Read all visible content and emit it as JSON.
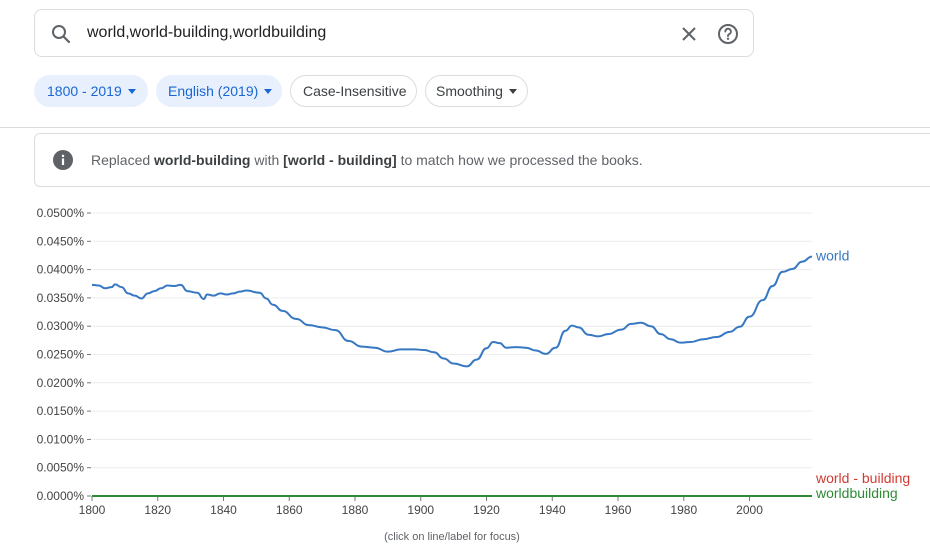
{
  "search": {
    "value": "world,world-building,worldbuilding"
  },
  "chips": [
    {
      "label": "1800 - 2019",
      "style": "filled",
      "dropdown": true
    },
    {
      "label": "English (2019)",
      "style": "filled",
      "dropdown": true
    },
    {
      "label": "Case-Insensitive",
      "style": "outline",
      "dropdown": false
    },
    {
      "label": "Smoothing",
      "style": "outline",
      "dropdown": true
    }
  ],
  "notice": {
    "icon": "info-icon",
    "prefix": "Replaced ",
    "original": "world-building",
    "middle": " with ",
    "replacement": "[world - building]",
    "suffix": " to match how we processed the books."
  },
  "footnote": "(click on line/label for focus)",
  "colors": {
    "world": "#3778c2",
    "world_building": "#d23b33",
    "worldbuilding": "#2e8a35",
    "chip_bg": "#e8f0fe",
    "chip_text": "#1967d2"
  },
  "chart_data": {
    "type": "line",
    "x_range": [
      1800,
      2019
    ],
    "ylim": [
      0,
      0.0005
    ],
    "xticks": [
      "1800",
      "1820",
      "1840",
      "1860",
      "1880",
      "1900",
      "1920",
      "1940",
      "1960",
      "1980",
      "2000"
    ],
    "yticks": [
      "0.0000%",
      "0.0050%",
      "0.0100%",
      "0.0150%",
      "0.0200%",
      "0.0250%",
      "0.0300%",
      "0.0350%",
      "0.0400%",
      "0.0450%",
      "0.0500%"
    ],
    "series": [
      {
        "name": "world",
        "color": "#3778c2",
        "points": [
          [
            1800,
            0.000373
          ],
          [
            1802,
            0.000372
          ],
          [
            1804,
            0.000367
          ],
          [
            1806,
            0.000369
          ],
          [
            1807,
            0.000374
          ],
          [
            1809,
            0.000369
          ],
          [
            1811,
            0.000358
          ],
          [
            1813,
            0.000354
          ],
          [
            1815,
            0.000349
          ],
          [
            1817,
            0.000358
          ],
          [
            1819,
            0.000362
          ],
          [
            1821,
            0.000367
          ],
          [
            1823,
            0.000372
          ],
          [
            1825,
            0.000371
          ],
          [
            1827,
            0.000373
          ],
          [
            1829,
            0.000362
          ],
          [
            1832,
            0.000359
          ],
          [
            1834,
            0.000348
          ],
          [
            1835,
            0.000356
          ],
          [
            1837,
            0.000354
          ],
          [
            1839,
            0.000358
          ],
          [
            1841,
            0.000356
          ],
          [
            1843,
            0.000358
          ],
          [
            1845,
            0.000361
          ],
          [
            1847,
            0.000363
          ],
          [
            1851,
            0.000359
          ],
          [
            1853,
            0.000349
          ],
          [
            1855,
            0.000338
          ],
          [
            1858,
            0.000327
          ],
          [
            1862,
            0.000313
          ],
          [
            1866,
            0.000302
          ],
          [
            1870,
            0.000298
          ],
          [
            1874,
            0.000293
          ],
          [
            1878,
            0.000274
          ],
          [
            1882,
            0.000264
          ],
          [
            1886,
            0.000262
          ],
          [
            1890,
            0.000255
          ],
          [
            1894,
            0.000259
          ],
          [
            1898,
            0.000259
          ],
          [
            1901,
            0.000258
          ],
          [
            1904,
            0.000254
          ],
          [
            1907,
            0.000243
          ],
          [
            1910,
            0.000234
          ],
          [
            1914,
            0.000229
          ],
          [
            1917,
            0.000241
          ],
          [
            1920,
            0.000261
          ],
          [
            1922,
            0.000272
          ],
          [
            1924,
            0.00027
          ],
          [
            1926,
            0.000262
          ],
          [
            1929,
            0.000263
          ],
          [
            1932,
            0.000262
          ],
          [
            1935,
            0.000257
          ],
          [
            1938,
            0.000251
          ],
          [
            1941,
            0.000262
          ],
          [
            1944,
            0.000292
          ],
          [
            1946,
            0.000301
          ],
          [
            1948,
            0.000298
          ],
          [
            1951,
            0.000285
          ],
          [
            1954,
            0.000282
          ],
          [
            1957,
            0.000286
          ],
          [
            1961,
            0.000294
          ],
          [
            1964,
            0.000304
          ],
          [
            1967,
            0.000306
          ],
          [
            1970,
            0.0003
          ],
          [
            1973,
            0.000286
          ],
          [
            1976,
            0.000277
          ],
          [
            1979,
            0.000271
          ],
          [
            1982,
            0.000272
          ],
          [
            1986,
            0.000277
          ],
          [
            1990,
            0.000281
          ],
          [
            1994,
            0.00029
          ],
          [
            1997,
            0.000299
          ],
          [
            2000,
            0.000317
          ],
          [
            2004,
            0.000346
          ],
          [
            2007,
            0.000371
          ],
          [
            2010,
            0.000396
          ],
          [
            2013,
            0.000401
          ],
          [
            2016,
            0.000414
          ],
          [
            2019,
            0.000423
          ]
        ]
      },
      {
        "name": "world - building",
        "color": "#d23b33",
        "points": [
          [
            1800,
            0.0
          ],
          [
            2019,
            0.0
          ]
        ]
      },
      {
        "name": "worldbuilding",
        "color": "#2e8a35",
        "points": [
          [
            1800,
            0.0
          ],
          [
            2019,
            0.0
          ]
        ]
      }
    ]
  }
}
